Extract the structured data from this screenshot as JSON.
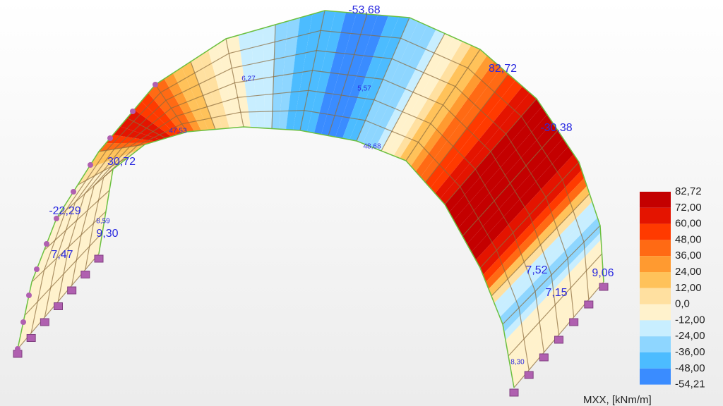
{
  "model_labels": [
    "-53,68",
    "82,72",
    "-30,38",
    "6,27",
    "5,57",
    "47,53",
    "48,68",
    "30,72",
    "-22,29",
    "8,59",
    "9,30",
    "7,47",
    "7,52",
    "9,06",
    "7,15",
    "8,30"
  ],
  "legend": {
    "labels": [
      "82,72",
      "72,00",
      "60,00",
      "48,00",
      "36,00",
      "24,00",
      "12,00",
      "0,0",
      "-12,00",
      "-24,00",
      "-36,00",
      "-48,00",
      "-54,21"
    ],
    "colors": [
      "#c40000",
      "#e41400",
      "#ff3a00",
      "#ff6a14",
      "#ff9a30",
      "#ffc25a",
      "#ffe0a0",
      "#fff2cc",
      "#c8eeff",
      "#8ed6ff",
      "#4cbcff",
      "#3a8cff"
    ],
    "unit": "MXX, [kNm/m]"
  }
}
